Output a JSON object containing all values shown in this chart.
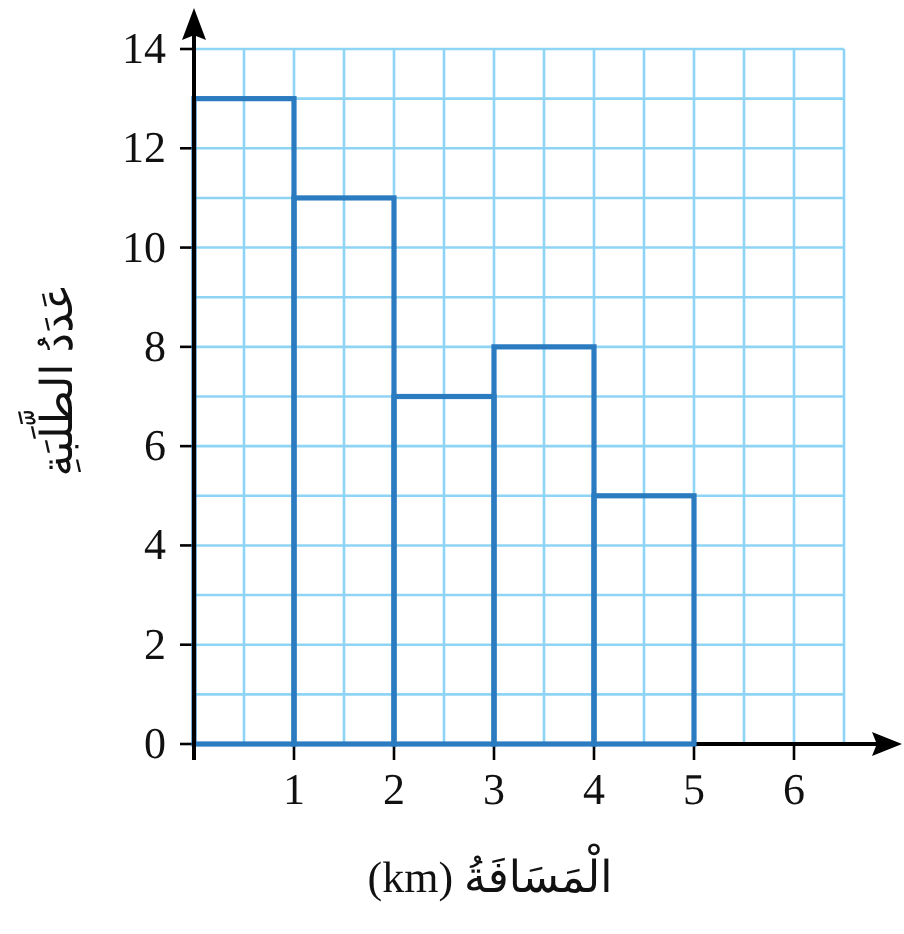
{
  "chart_data": {
    "type": "histogram",
    "xlabel": "الْمَسَافَةُ (km)",
    "ylabel": "عَدَدُ الطَّلَبَةِ",
    "bins": [
      0,
      1,
      2,
      3,
      4,
      5
    ],
    "values": [
      13,
      11,
      7,
      8,
      5
    ],
    "color": "#2a7bbf",
    "xlim": [
      0,
      6.5
    ],
    "ylim": [
      0,
      14
    ],
    "xticks": [
      1,
      2,
      3,
      4,
      5,
      6
    ],
    "yticks": [
      0,
      2,
      4,
      6,
      8,
      10,
      12,
      14
    ],
    "grid": true
  }
}
